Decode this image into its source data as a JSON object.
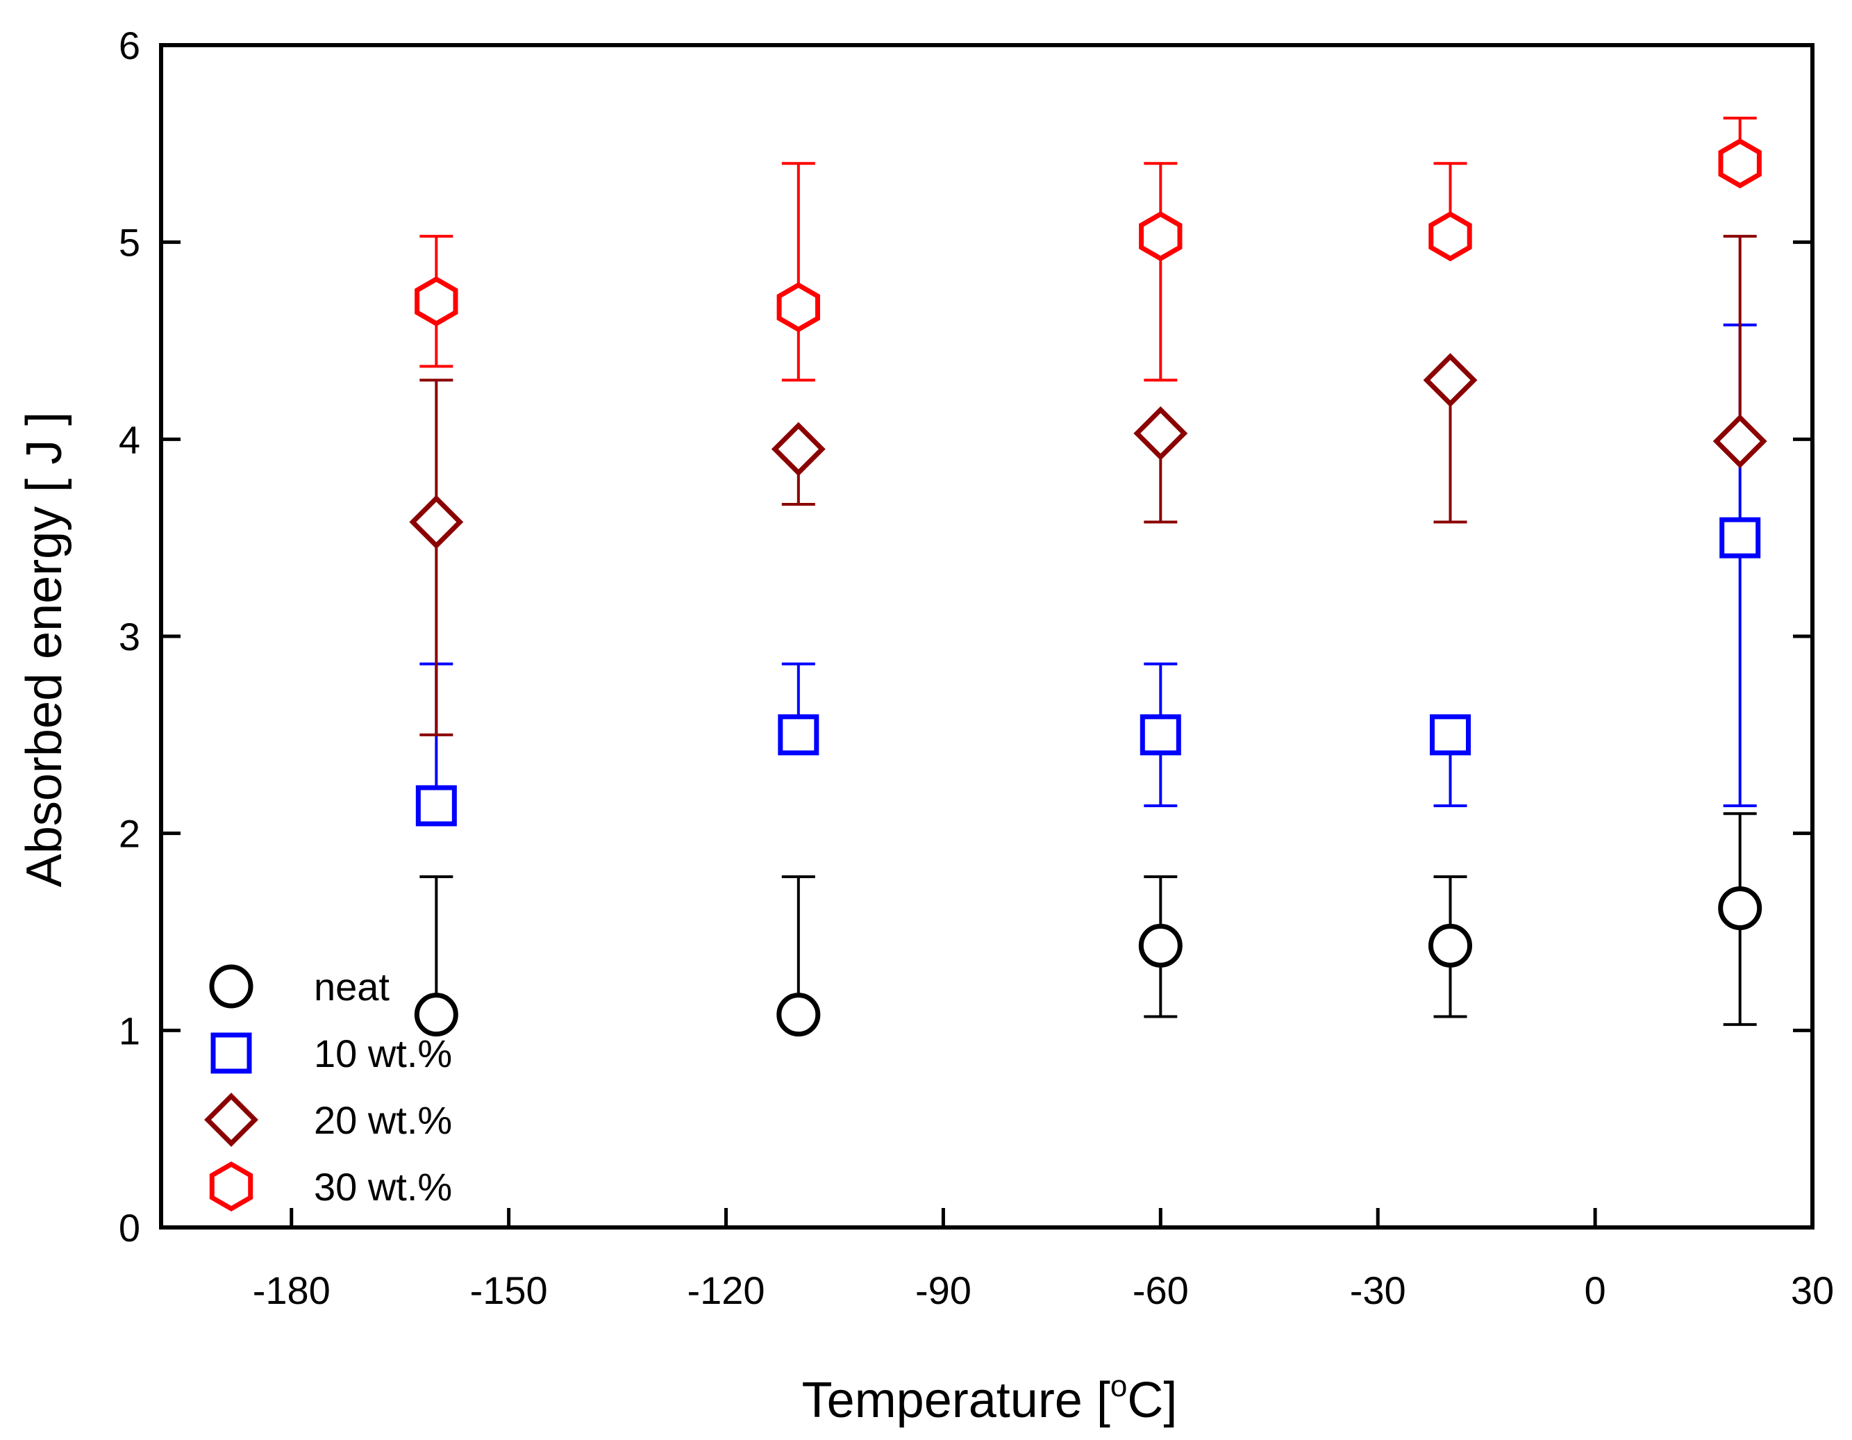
{
  "chart_data": {
    "type": "scatter",
    "title": "",
    "xlabel_main": "Temperature [",
    "xlabel_sup": "o",
    "xlabel_end": "C]",
    "ylabel": "Absorbed energy [ J ]",
    "xlim": [
      -198,
      30
    ],
    "ylim": [
      0,
      6
    ],
    "xticks": [
      -180,
      -150,
      -120,
      -90,
      -60,
      -30,
      0,
      30
    ],
    "yticks": [
      0,
      1,
      2,
      3,
      4,
      5,
      6
    ],
    "legend_position": "bottom-left",
    "series": [
      {
        "name": "neat",
        "marker": "circle",
        "color": "#000000",
        "x": [
          -160,
          -110,
          -60,
          -20,
          20
        ],
        "y": [
          1.08,
          1.08,
          1.43,
          1.43,
          1.62
        ],
        "err_low": [
          1.08,
          1.08,
          1.07,
          1.07,
          1.03
        ],
        "err_high": [
          1.78,
          1.78,
          1.78,
          1.78,
          2.1
        ]
      },
      {
        "name": "10 wt.%",
        "marker": "square",
        "color": "#0000ff",
        "x": [
          -160,
          -110,
          -60,
          -20,
          20
        ],
        "y": [
          2.14,
          2.5,
          2.5,
          2.5,
          3.5
        ],
        "err_low": [
          2.14,
          2.5,
          2.14,
          2.14,
          2.14
        ],
        "err_high": [
          2.86,
          2.86,
          2.86,
          2.5,
          4.58
        ]
      },
      {
        "name": "20 wt.%",
        "marker": "diamond",
        "color": "#8b0000",
        "x": [
          -160,
          -110,
          -60,
          -20,
          20
        ],
        "y": [
          3.58,
          3.95,
          4.03,
          4.3,
          3.99
        ],
        "err_low": [
          2.5,
          3.67,
          3.58,
          3.58,
          3.99
        ],
        "err_high": [
          4.3,
          3.95,
          4.03,
          4.3,
          5.03
        ]
      },
      {
        "name": "30 wt.%",
        "marker": "hexagon",
        "color": "#ff0000",
        "x": [
          -160,
          -110,
          -60,
          -20,
          20
        ],
        "y": [
          4.7,
          4.67,
          5.03,
          5.03,
          5.4
        ],
        "err_low": [
          4.37,
          4.3,
          4.3,
          5.03,
          5.4
        ],
        "err_high": [
          5.03,
          5.4,
          5.4,
          5.4,
          5.63
        ]
      }
    ]
  }
}
